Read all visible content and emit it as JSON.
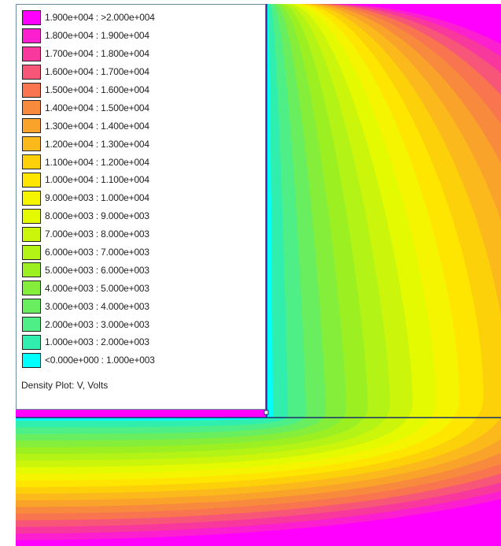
{
  "plot": {
    "caption": "Density Plot: V, Volts",
    "colors": {
      "background": "#ffffff",
      "boundary": "#1a2f6b",
      "panel_border": "#6a8aa0"
    },
    "legend": [
      {
        "label": "1.900e+004 : >2.000e+004",
        "color": "#ff00ff"
      },
      {
        "label": "1.800e+004 : 1.900e+004",
        "color": "#fb1fcf"
      },
      {
        "label": "1.700e+004 : 1.800e+004",
        "color": "#f8389c"
      },
      {
        "label": "1.600e+004 : 1.700e+004",
        "color": "#f85678"
      },
      {
        "label": "1.500e+004 : 1.600e+004",
        "color": "#f8754f"
      },
      {
        "label": "1.400e+004 : 1.500e+004",
        "color": "#f88a3d"
      },
      {
        "label": "1.300e+004 : 1.400e+004",
        "color": "#faa32a"
      },
      {
        "label": "1.200e+004 : 1.300e+004",
        "color": "#fbb91b"
      },
      {
        "label": "1.100e+004 : 1.200e+004",
        "color": "#fcd10a"
      },
      {
        "label": "1.000e+004 : 1.100e+004",
        "color": "#fee600"
      },
      {
        "label": "9.000e+003 : 1.000e+004",
        "color": "#f5f500"
      },
      {
        "label": "8.000e+003 : 9.000e+003",
        "color": "#e4fa00"
      },
      {
        "label": "7.000e+003 : 8.000e+003",
        "color": "#cbf50a"
      },
      {
        "label": "6.000e+003 : 7.000e+003",
        "color": "#b4f316"
      },
      {
        "label": "5.000e+003 : 6.000e+003",
        "color": "#9cf022"
      },
      {
        "label": "4.000e+003 : 5.000e+003",
        "color": "#84ee3a"
      },
      {
        "label": "3.000e+003 : 4.000e+003",
        "color": "#68ee5e"
      },
      {
        "label": "2.000e+003 : 3.000e+003",
        "color": "#4eef86"
      },
      {
        "label": "1.000e+003 : 2.000e+003",
        "color": "#30efae"
      },
      {
        "label": "<0.000e+000 : 1.000e+003",
        "color": "#00ffff"
      }
    ]
  }
}
